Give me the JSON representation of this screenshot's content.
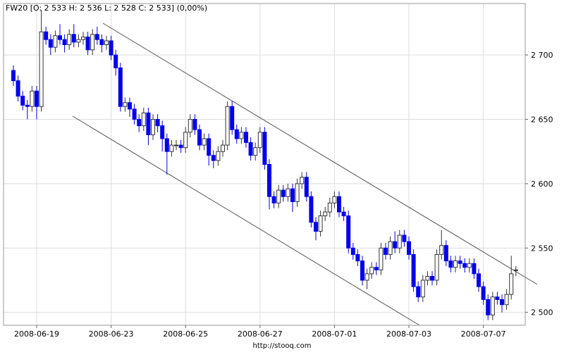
{
  "chart_data": {
    "type": "candlestick",
    "title": "FW20 [O: 2 533 H: 2 536 L: 2 528 C: 2 533] (0,00%)",
    "footer": "http://stooq.com",
    "categories": [
      null,
      null,
      null,
      null,
      null,
      "2008-06-19",
      null,
      null,
      null,
      null,
      null,
      null,
      null,
      null,
      null,
      null,
      null,
      null,
      null,
      null,
      null,
      "2008-06-23",
      null,
      null,
      null,
      null,
      null,
      null,
      null,
      null,
      null,
      null,
      null,
      null,
      null,
      null,
      null,
      "2008-06-25",
      null,
      null,
      null,
      null,
      null,
      null,
      null,
      null,
      null,
      null,
      null,
      null,
      null,
      null,
      null,
      "2008-06-27",
      null,
      null,
      null,
      null,
      null,
      null,
      null,
      null,
      null,
      null,
      null,
      null,
      null,
      null,
      null,
      "2008-07-01",
      null,
      null,
      null,
      null,
      null,
      null,
      null,
      null,
      null,
      null,
      null,
      null,
      null,
      null,
      null,
      "2008-07-03",
      null,
      null,
      null,
      null,
      null,
      null,
      null,
      null,
      null,
      null,
      null,
      null,
      null,
      null,
      null,
      "2008-07-07",
      null,
      null,
      null,
      null,
      null,
      null,
      null
    ],
    "open": [
      2688,
      2680,
      2668,
      2661,
      2660,
      2672,
      2660,
      2718,
      2712,
      2706,
      2715,
      2712,
      2708,
      2716,
      2710,
      2712,
      2714,
      2704,
      2716,
      2712,
      2708,
      2711,
      2700,
      2690,
      2660,
      2663,
      2658,
      2650,
      2645,
      2655,
      2638,
      2650,
      2645,
      2635,
      2625,
      2630,
      2630,
      2628,
      2640,
      2650,
      2642,
      2630,
      2635,
      2622,
      2618,
      2625,
      2630,
      2660,
      2642,
      2635,
      2640,
      2632,
      2622,
      2628,
      2640,
      2615,
      2590,
      2585,
      2595,
      2590,
      2596,
      2586,
      2600,
      2605,
      2590,
      2570,
      2563,
      2575,
      2578,
      2585,
      2590,
      2578,
      2575,
      2550,
      2545,
      2540,
      2525,
      2530,
      2535,
      2533,
      2550,
      2545,
      2555,
      2550,
      2560,
      2555,
      2545,
      2520,
      2512,
      2525,
      2528,
      2525,
      2545,
      2552,
      2540,
      2535,
      2540,
      2538,
      2535,
      2538,
      2530,
      2520,
      2510,
      2498,
      2512,
      2510,
      2506,
      2514,
      2533
    ],
    "high": [
      2692,
      2684,
      2672,
      2665,
      2676,
      2676,
      2735,
      2722,
      2716,
      2719,
      2724,
      2716,
      2720,
      2724,
      2716,
      2718,
      2718,
      2720,
      2722,
      2716,
      2715,
      2715,
      2704,
      2694,
      2667,
      2667,
      2662,
      2654,
      2659,
      2659,
      2654,
      2654,
      2649,
      2639,
      2634,
      2634,
      2634,
      2644,
      2654,
      2654,
      2646,
      2639,
      2639,
      2626,
      2629,
      2634,
      2664,
      2664,
      2646,
      2644,
      2644,
      2636,
      2632,
      2644,
      2644,
      2619,
      2594,
      2599,
      2599,
      2600,
      2600,
      2604,
      2609,
      2609,
      2594,
      2574,
      2579,
      2582,
      2589,
      2594,
      2594,
      2582,
      2579,
      2554,
      2549,
      2544,
      2534,
      2539,
      2539,
      2554,
      2554,
      2559,
      2563,
      2564,
      2564,
      2559,
      2549,
      2524,
      2529,
      2532,
      2532,
      2549,
      2564,
      2556,
      2544,
      2544,
      2544,
      2542,
      2542,
      2542,
      2534,
      2524,
      2514,
      2516,
      2516,
      2514,
      2518,
      2544,
      2536
    ],
    "low": [
      2676,
      2664,
      2657,
      2650,
      2656,
      2650,
      2656,
      2708,
      2700,
      2702,
      2708,
      2702,
      2704,
      2706,
      2706,
      2708,
      2700,
      2700,
      2708,
      2702,
      2704,
      2696,
      2684,
      2656,
      2656,
      2652,
      2646,
      2640,
      2641,
      2630,
      2634,
      2640,
      2625,
      2607,
      2621,
      2626,
      2624,
      2624,
      2636,
      2638,
      2626,
      2626,
      2614,
      2612,
      2614,
      2621,
      2626,
      2638,
      2631,
      2631,
      2628,
      2618,
      2618,
      2624,
      2611,
      2580,
      2581,
      2581,
      2586,
      2586,
      2578,
      2582,
      2596,
      2586,
      2566,
      2556,
      2559,
      2571,
      2574,
      2581,
      2574,
      2571,
      2546,
      2541,
      2536,
      2521,
      2518,
      2526,
      2529,
      2529,
      2541,
      2541,
      2546,
      2546,
      2551,
      2541,
      2516,
      2508,
      2508,
      2521,
      2521,
      2521,
      2541,
      2536,
      2531,
      2531,
      2534,
      2531,
      2531,
      2526,
      2516,
      2506,
      2494,
      2494,
      2506,
      2500,
      2502,
      2510,
      2528
    ],
    "close": [
      2680,
      2668,
      2661,
      2660,
      2672,
      2660,
      2718,
      2712,
      2706,
      2715,
      2712,
      2708,
      2716,
      2710,
      2712,
      2714,
      2704,
      2716,
      2712,
      2708,
      2711,
      2700,
      2690,
      2660,
      2663,
      2658,
      2650,
      2645,
      2655,
      2638,
      2650,
      2645,
      2635,
      2625,
      2630,
      2630,
      2628,
      2640,
      2650,
      2642,
      2630,
      2635,
      2622,
      2618,
      2625,
      2630,
      2660,
      2642,
      2635,
      2640,
      2632,
      2622,
      2628,
      2640,
      2615,
      2590,
      2585,
      2595,
      2590,
      2596,
      2586,
      2600,
      2605,
      2590,
      2570,
      2563,
      2575,
      2578,
      2585,
      2590,
      2578,
      2575,
      2550,
      2545,
      2540,
      2525,
      2530,
      2535,
      2533,
      2550,
      2545,
      2555,
      2550,
      2560,
      2555,
      2545,
      2520,
      2512,
      2525,
      2528,
      2525,
      2545,
      2552,
      2540,
      2535,
      2540,
      2538,
      2535,
      2538,
      2530,
      2520,
      2510,
      2498,
      2512,
      2510,
      2506,
      2514,
      2530,
      2533
    ],
    "up_color": "#ffffff",
    "down_color": "#0000ee",
    "up_edge_color": "#333333",
    "ylim": [
      2490,
      2740
    ],
    "yticks": [
      {
        "value": 2500,
        "label": "2 500"
      },
      {
        "value": 2550,
        "label": "2 550"
      },
      {
        "value": 2600,
        "label": "2 600"
      },
      {
        "value": 2650,
        "label": "2 650"
      },
      {
        "value": 2700,
        "label": "2 700"
      }
    ],
    "grid": true
  }
}
